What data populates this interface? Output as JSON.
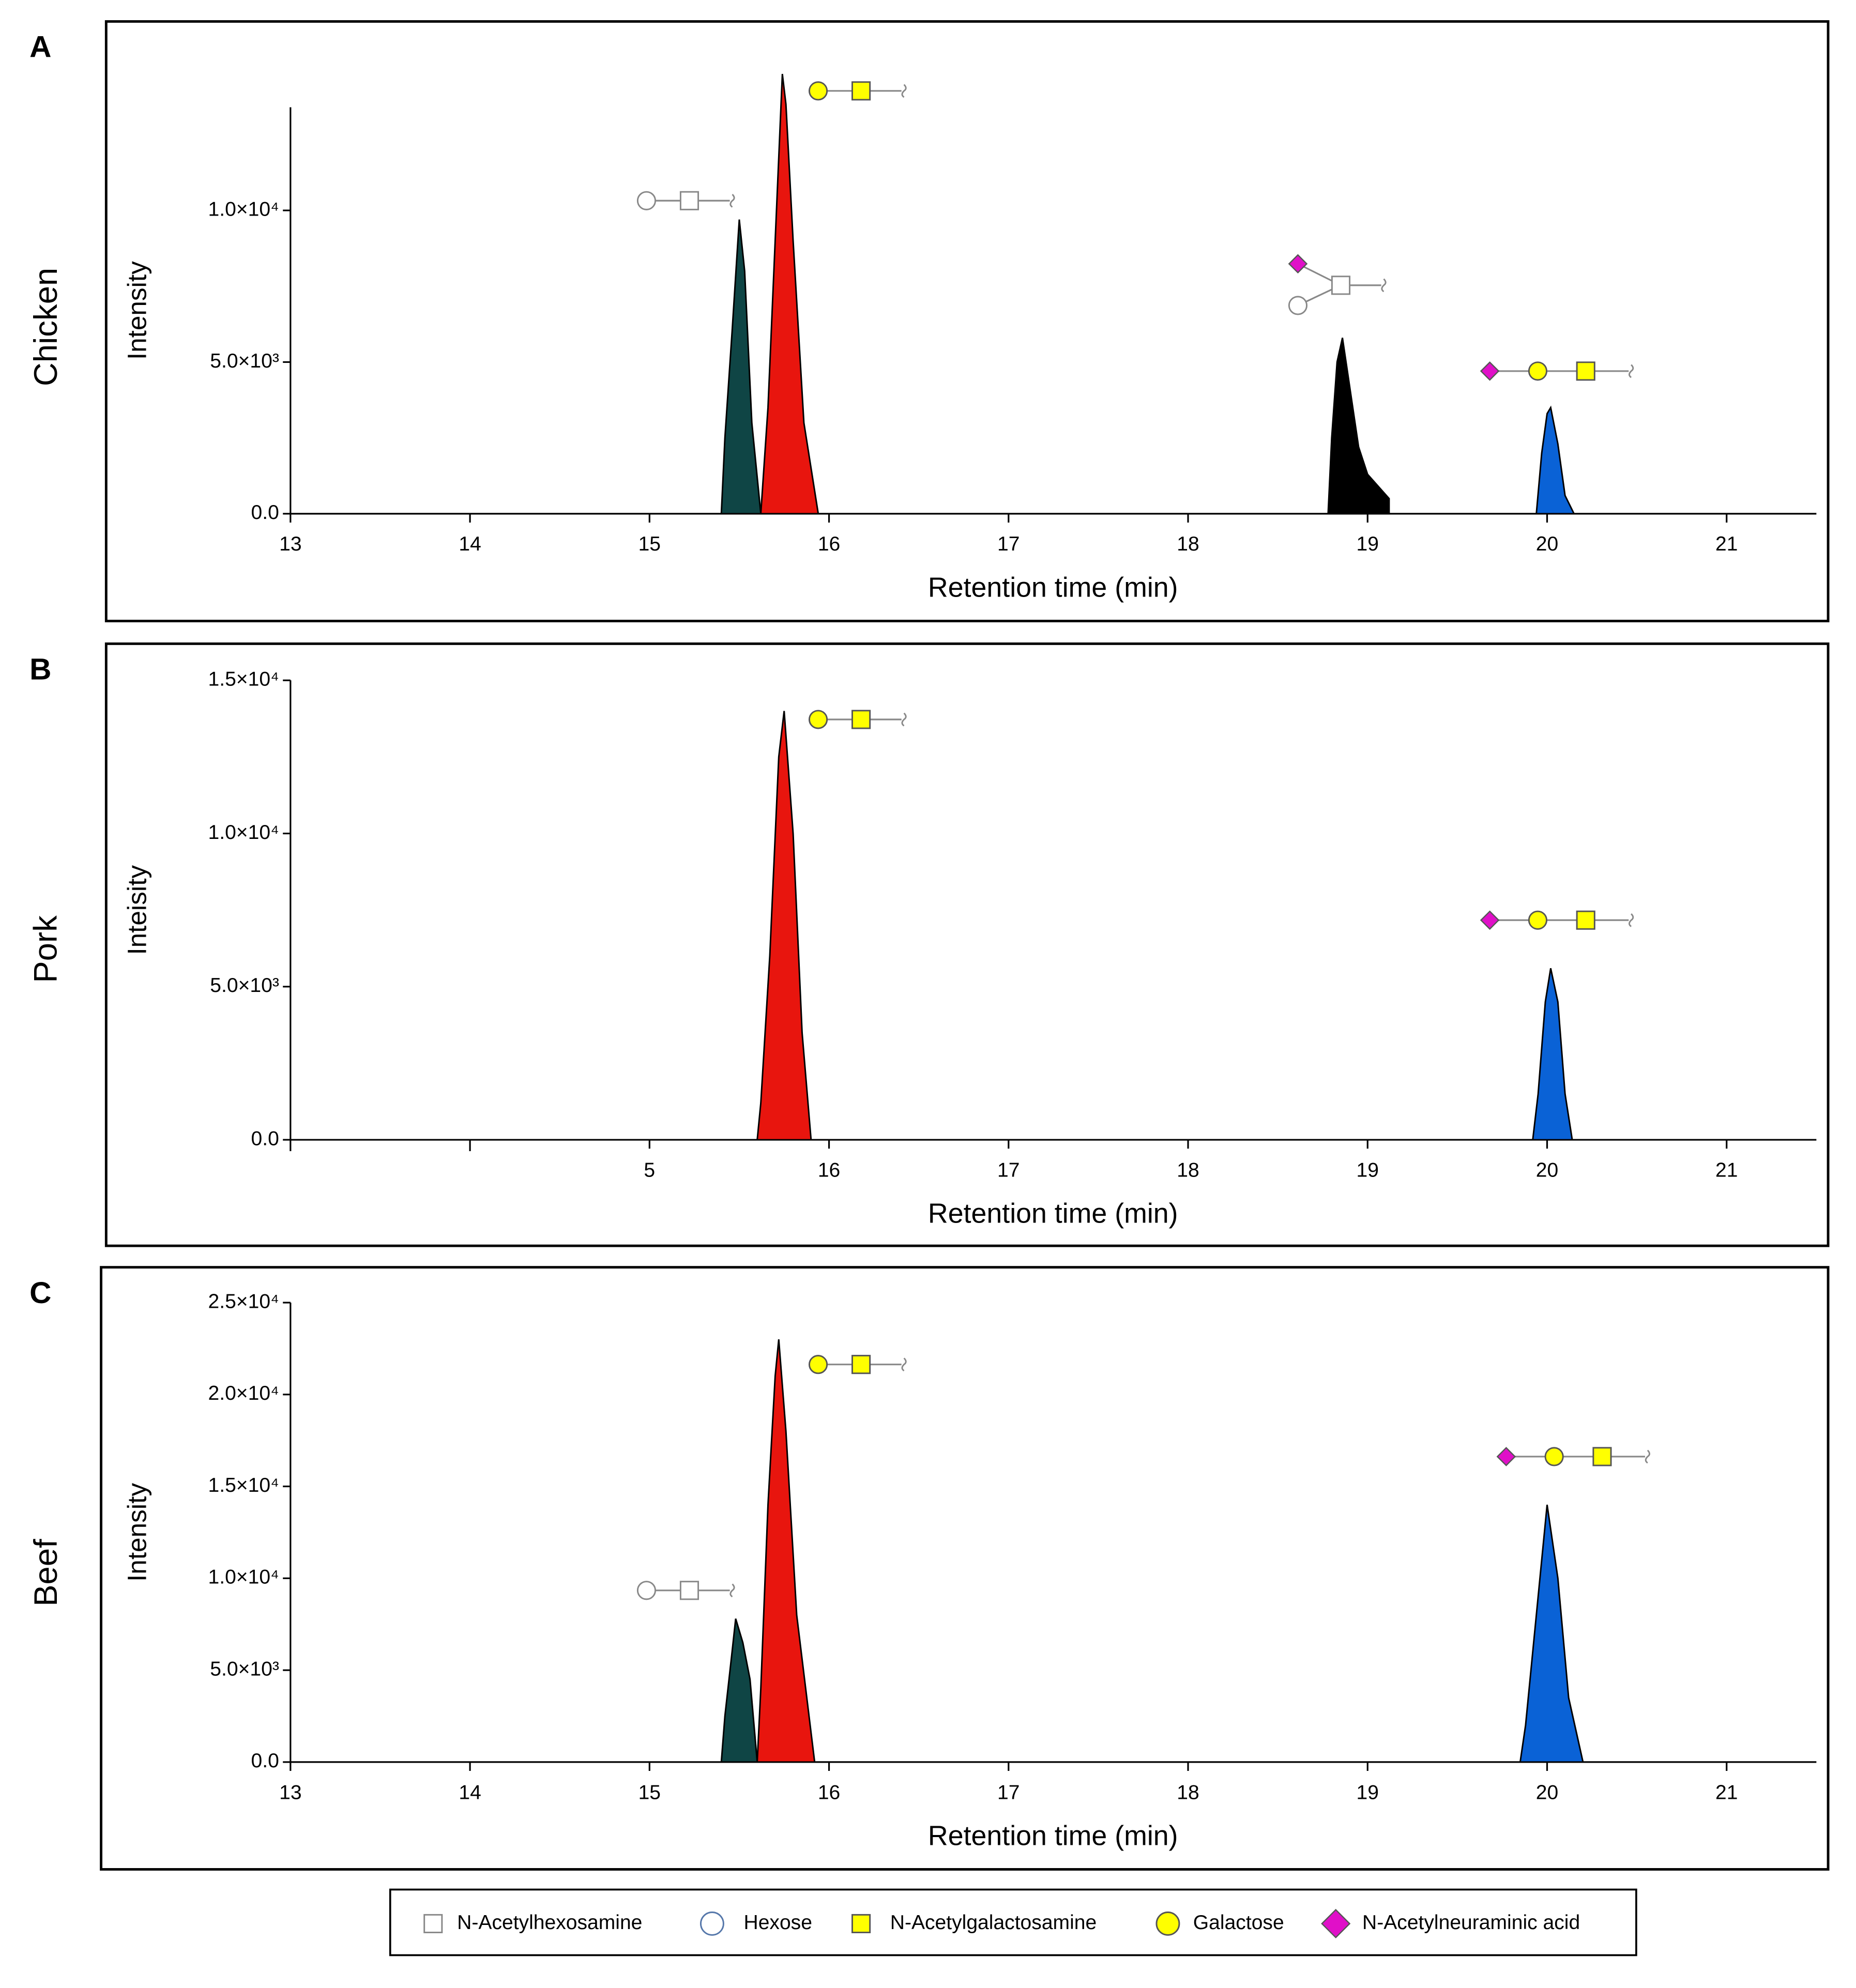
{
  "chart_data": [
    {
      "type": "area",
      "letter": "A",
      "sample": "Chicken",
      "ylabel": "Intensity",
      "xlabel": "Retention time (min)",
      "xlim": [
        13,
        21.5
      ],
      "ylim": [
        0,
        13400
      ],
      "xticks": [
        13,
        14,
        15,
        16,
        17,
        18,
        19,
        20,
        21
      ],
      "yticks": [
        {
          "value": 0,
          "label": "0.0"
        },
        {
          "value": 5000,
          "label": "5.0×10³"
        },
        {
          "value": 10000,
          "label": "1.0×10⁴"
        }
      ],
      "series": [
        {
          "color": "#0f4545",
          "x": [
            15.4,
            15.42,
            15.46,
            15.5,
            15.53,
            15.57,
            15.62
          ],
          "values": [
            0,
            2500,
            6000,
            9700,
            8000,
            3000,
            0
          ]
        },
        {
          "color": "#e8150e",
          "x": [
            15.62,
            15.66,
            15.7,
            15.74,
            15.76,
            15.8,
            15.86,
            15.94
          ],
          "values": [
            0,
            3500,
            9000,
            14500,
            13500,
            9000,
            3000,
            0
          ]
        },
        {
          "color": "#000000",
          "x": [
            18.78,
            18.8,
            18.83,
            18.86,
            18.9,
            18.95,
            19.0,
            19.06,
            19.12,
            19.12
          ],
          "values": [
            0,
            2500,
            5000,
            5800,
            4200,
            2200,
            1300,
            900,
            500,
            0
          ]
        },
        {
          "color": "#0a62d6",
          "x": [
            19.94,
            19.97,
            20.0,
            20.02,
            20.06,
            20.1,
            20.15
          ],
          "values": [
            0,
            2000,
            3300,
            3500,
            2300,
            600,
            0
          ]
        }
      ]
    },
    {
      "type": "area",
      "letter": "B",
      "sample": "Pork",
      "ylabel": "Inteisity",
      "xlabel": "Retention time (min)",
      "xlim": [
        13,
        21.5
      ],
      "ylim": [
        0,
        15000
      ],
      "xticks": [
        {
          "value": 15,
          "label": "5"
        },
        16,
        17,
        18,
        19,
        20,
        21
      ],
      "xminor_ticks": [
        13,
        14
      ],
      "yticks": [
        {
          "value": 0,
          "label": "0.0"
        },
        {
          "value": 5000,
          "label": "5.0×10³"
        },
        {
          "value": 10000,
          "label": "1.0×10⁴"
        },
        {
          "value": 15000,
          "label": "1.5×10⁴"
        }
      ],
      "series": [
        {
          "color": "#e8150e",
          "x": [
            15.6,
            15.62,
            15.67,
            15.72,
            15.75,
            15.8,
            15.85,
            15.9
          ],
          "values": [
            0,
            1200,
            6000,
            12500,
            14000,
            10000,
            3500,
            0
          ]
        },
        {
          "color": "#0a62d6",
          "x": [
            19.92,
            19.95,
            19.99,
            20.02,
            20.06,
            20.1,
            20.14
          ],
          "values": [
            0,
            1500,
            4500,
            5600,
            4500,
            1500,
            0
          ]
        }
      ]
    },
    {
      "type": "area",
      "letter": "C",
      "sample": "Beef",
      "ylabel": "Intensity",
      "xlabel": "Retention time (min)",
      "xlim": [
        13,
        21.5
      ],
      "ylim": [
        0,
        25000
      ],
      "xticks": [
        13,
        14,
        15,
        16,
        17,
        18,
        19,
        20,
        21
      ],
      "yticks": [
        {
          "value": 0,
          "label": "0.0"
        },
        {
          "value": 5000,
          "label": "5.0×10³"
        },
        {
          "value": 10000,
          "label": "1.0×10⁴"
        },
        {
          "value": 15000,
          "label": "1.5×10⁴"
        },
        {
          "value": 20000,
          "label": "2.0×10⁴"
        },
        {
          "value": 25000,
          "label": "2.5×10⁴"
        }
      ],
      "series": [
        {
          "color": "#0f4545",
          "x": [
            15.4,
            15.42,
            15.46,
            15.48,
            15.52,
            15.56,
            15.6
          ],
          "values": [
            0,
            2500,
            6000,
            7800,
            6500,
            4500,
            0
          ]
        },
        {
          "color": "#e8150e",
          "x": [
            15.6,
            15.62,
            15.66,
            15.7,
            15.72,
            15.76,
            15.82,
            15.92
          ],
          "values": [
            0,
            4000,
            14000,
            21000,
            23000,
            18000,
            8000,
            0
          ]
        },
        {
          "color": "#0a62d6",
          "x": [
            19.85,
            19.88,
            19.94,
            20.0,
            20.06,
            20.12,
            20.2
          ],
          "values": [
            0,
            2000,
            8000,
            14000,
            10000,
            3500,
            0
          ]
        }
      ]
    }
  ],
  "legend": [
    "N-Acetylhexosamine",
    "Hexose",
    "N-Acetylgalactosamine",
    "Galactose",
    "N-Acetylneuraminic acid"
  ]
}
